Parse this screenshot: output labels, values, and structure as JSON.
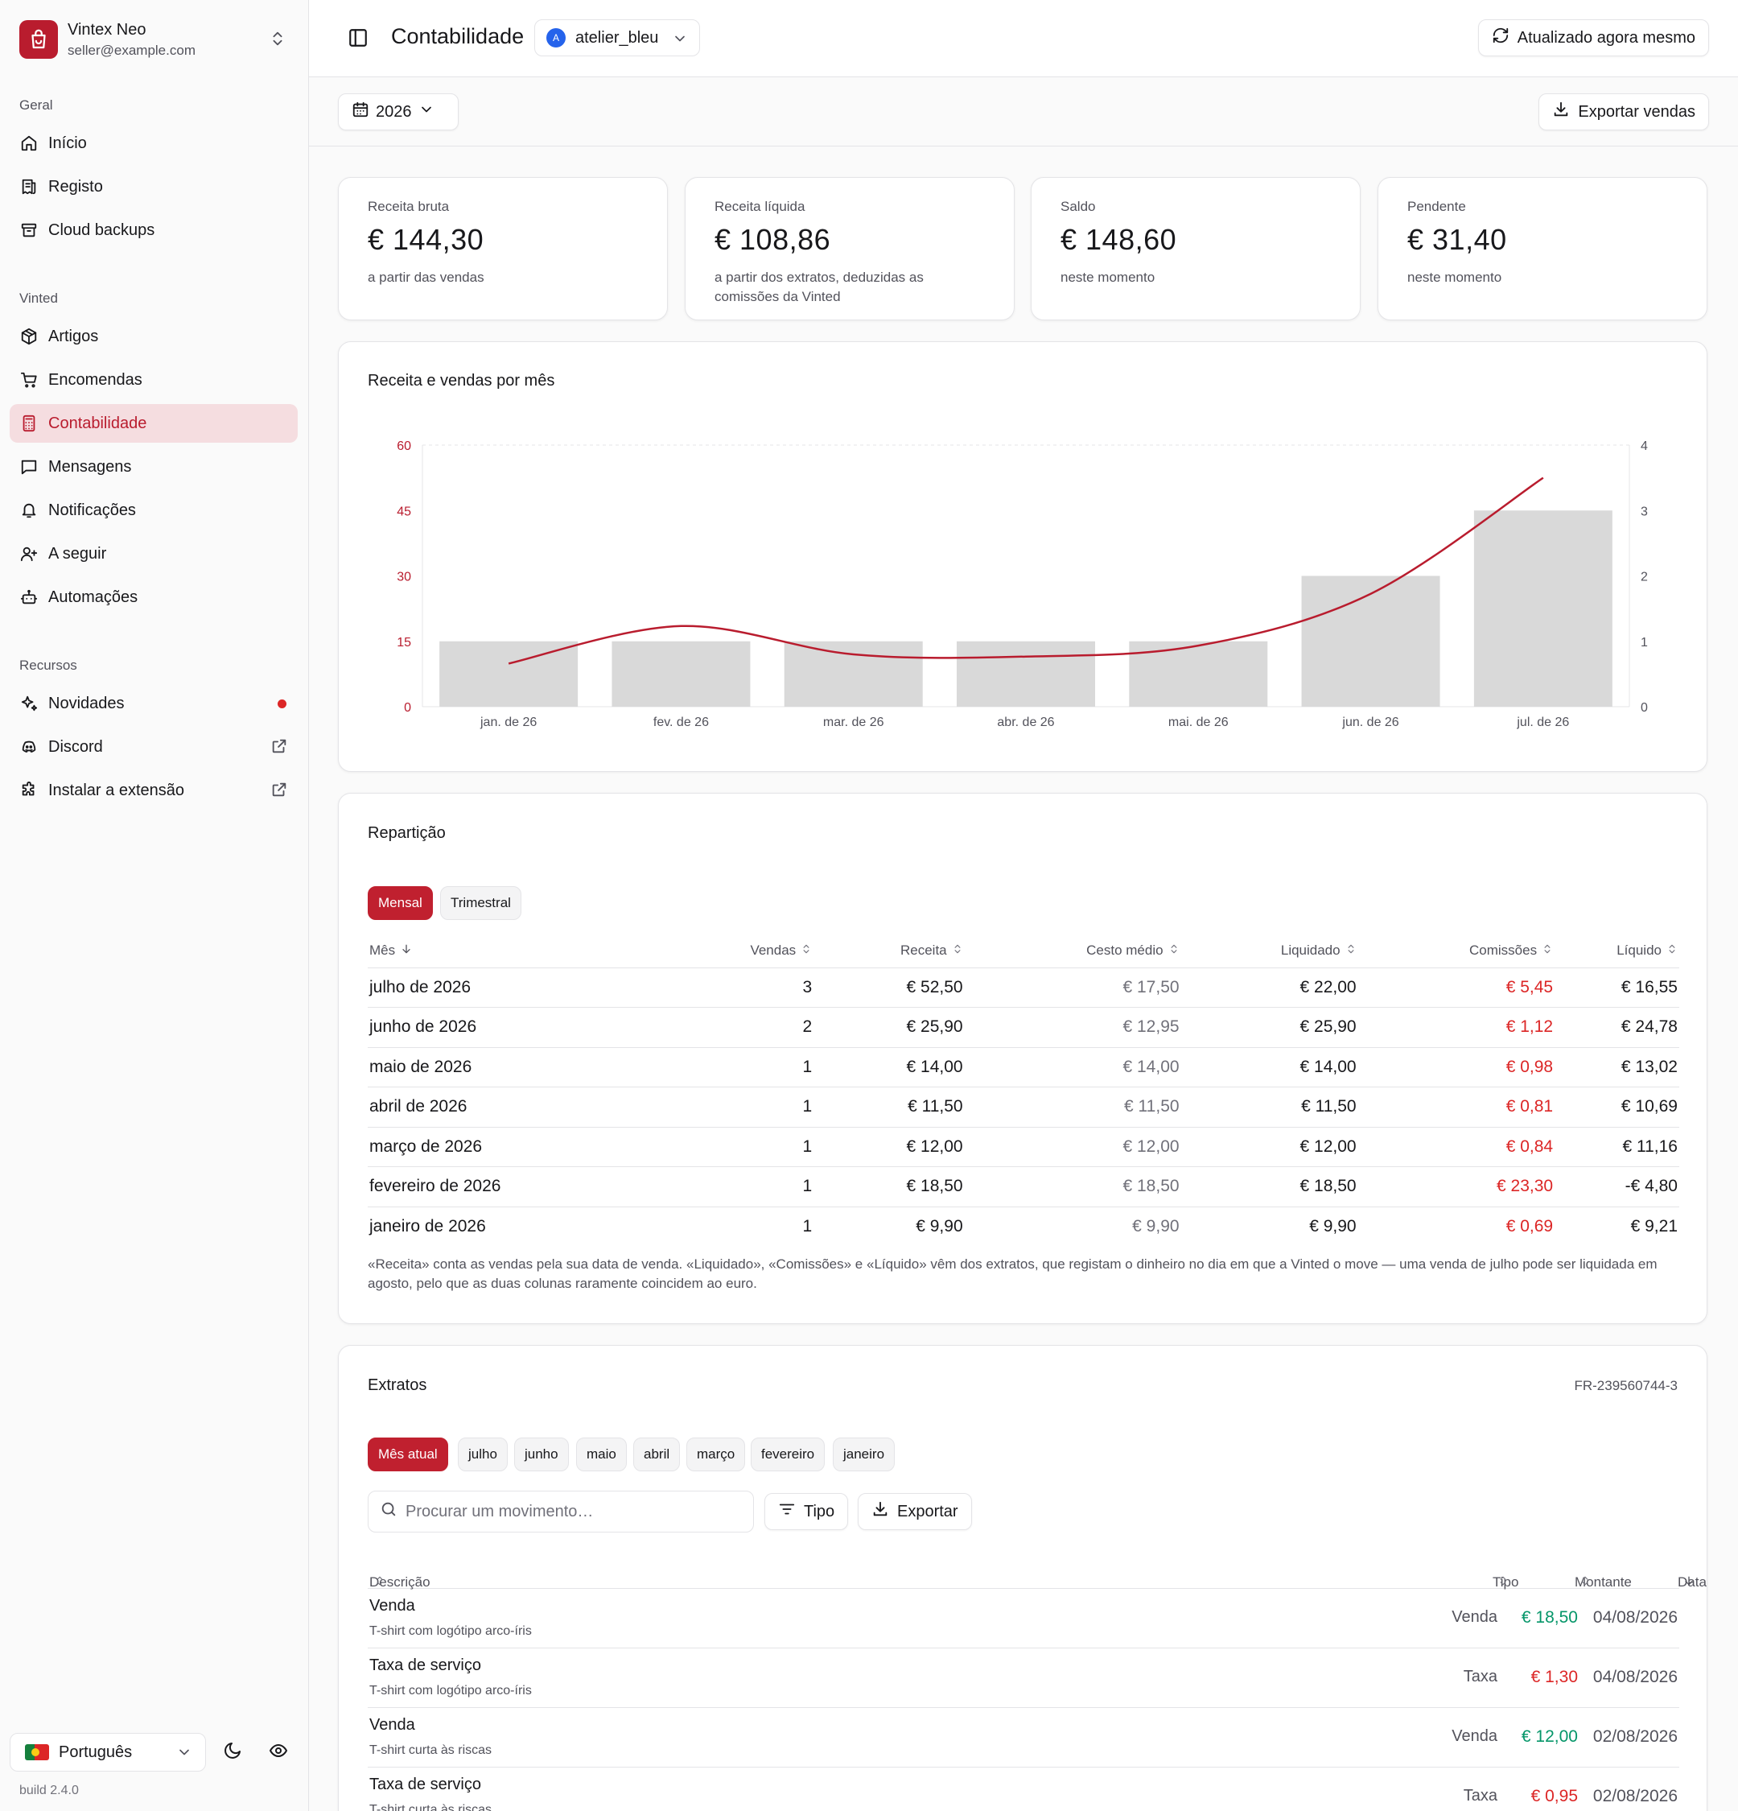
{
  "sidebar": {
    "brand_name": "Vintex Neo",
    "brand_email": "seller@example.com",
    "groups": {
      "general": "Geral",
      "vinted": "Vinted",
      "resources": "Recursos"
    },
    "items": [
      {
        "label": "Início",
        "icon": "home-icon"
      },
      {
        "label": "Registo",
        "icon": "receipt-icon"
      },
      {
        "label": "Cloud backups",
        "icon": "archive-icon"
      },
      {
        "label": "Artigos",
        "icon": "package-icon"
      },
      {
        "label": "Encomendas",
        "icon": "cart-icon"
      },
      {
        "label": "Contabilidade",
        "icon": "calculator-icon",
        "active": true
      },
      {
        "label": "Mensagens",
        "icon": "message-icon"
      },
      {
        "label": "Notificações",
        "icon": "bell-icon"
      },
      {
        "label": "A seguir",
        "icon": "user-plus-icon"
      },
      {
        "label": "Automações",
        "icon": "bot-icon"
      },
      {
        "label": "Novidades",
        "icon": "sparkles-icon",
        "badge": "red-dot"
      },
      {
        "label": "Discord",
        "icon": "discord-icon",
        "external": true
      },
      {
        "label": "Instalar a extensão",
        "icon": "puzzle-icon",
        "external": true
      }
    ],
    "language": "Português",
    "build": "build 2.4.0"
  },
  "header": {
    "title": "Contabilidade",
    "account": "atelier_bleu",
    "account_initial": "A",
    "refresh": "Atualizado agora mesmo"
  },
  "toolbar": {
    "year": "2026",
    "export_sales": "Exportar vendas"
  },
  "kpis": [
    {
      "label": "Receita bruta",
      "value": "€ 144,30",
      "sub": "a partir das vendas"
    },
    {
      "label": "Receita líquida",
      "value": "€ 108,86",
      "sub": "a partir dos extratos, deduzidas as comissões da Vinted"
    },
    {
      "label": "Saldo",
      "value": "€ 148,60",
      "sub": "neste momento"
    },
    {
      "label": "Pendente",
      "value": "€ 31,40",
      "sub": "neste momento"
    }
  ],
  "chart_data": {
    "type": "bar",
    "title": "Receita e vendas por mês",
    "categories": [
      "jan. de 26",
      "fev. de 26",
      "mar. de 26",
      "abr. de 26",
      "mai. de 26",
      "jun. de 26",
      "jul. de 26"
    ],
    "y_left": {
      "ticks": [
        "0",
        "15",
        "30",
        "45",
        "60"
      ],
      "ylim": [
        0,
        60
      ]
    },
    "y_right": {
      "ticks": [
        "0",
        "1",
        "2",
        "3",
        "4"
      ],
      "ylim": [
        0,
        4
      ]
    },
    "series": [
      {
        "type": "bar",
        "axis": "right",
        "values": [
          1,
          1,
          1,
          1,
          1,
          2,
          3
        ],
        "color": "#d9d9d9"
      },
      {
        "type": "line",
        "axis": "left",
        "values": [
          9.9,
          18.5,
          12.0,
          11.5,
          14.0,
          25.9,
          52.5
        ],
        "color": "#b91c2e"
      }
    ],
    "grid": false
  },
  "breakdown": {
    "title": "Repartição",
    "tabs": [
      "Mensal",
      "Trimestral"
    ],
    "columns": [
      "Mês",
      "Vendas",
      "Receita",
      "Cesto médio",
      "Liquidado",
      "Comissões",
      "Líquido"
    ],
    "rows": [
      [
        "julho de 2026",
        "3",
        "€ 52,50",
        "€ 17,50",
        "€ 22,00",
        "€ 5,45",
        "€ 16,55"
      ],
      [
        "junho de 2026",
        "2",
        "€ 25,90",
        "€ 12,95",
        "€ 25,90",
        "€ 1,12",
        "€ 24,78"
      ],
      [
        "maio de 2026",
        "1",
        "€ 14,00",
        "€ 14,00",
        "€ 14,00",
        "€ 0,98",
        "€ 13,02"
      ],
      [
        "abril de 2026",
        "1",
        "€ 11,50",
        "€ 11,50",
        "€ 11,50",
        "€ 0,81",
        "€ 10,69"
      ],
      [
        "março de 2026",
        "1",
        "€ 12,00",
        "€ 12,00",
        "€ 12,00",
        "€ 0,84",
        "€ 11,16"
      ],
      [
        "fevereiro de 2026",
        "1",
        "€ 18,50",
        "€ 18,50",
        "€ 18,50",
        "€ 23,30",
        "-€ 4,80"
      ],
      [
        "janeiro de 2026",
        "1",
        "€ 9,90",
        "€ 9,90",
        "€ 9,90",
        "€ 0,69",
        "€ 9,21"
      ]
    ],
    "note": "«Receita» conta as vendas pela sua data de venda. «Liquidado», «Comissões» e «Líquido» vêm dos extratos, que registam o dinheiro no dia em que a Vinted o move — uma venda de julho pode ser liquidada em agosto, pelo que as duas colunas raramente coincidem ao euro."
  },
  "extracts": {
    "title": "Extratos",
    "id": "FR-239560744-3",
    "tabs": [
      "Mês atual",
      "julho",
      "junho",
      "maio",
      "abril",
      "março",
      "fevereiro",
      "janeiro"
    ],
    "search_placeholder": "Procurar um movimento…",
    "type_button": "Tipo",
    "export_button": "Exportar",
    "columns": [
      "Descrição",
      "Tipo",
      "Montante",
      "Data"
    ],
    "rows": [
      {
        "title": "Venda",
        "subtitle": "T-shirt com logótipo arco-íris",
        "type": "Venda",
        "amount": "€ 18,50",
        "date": "04/08/2026",
        "sign": "pos"
      },
      {
        "title": "Taxa de serviço",
        "subtitle": "T-shirt com logótipo arco-íris",
        "type": "Taxa",
        "amount": "€ 1,30",
        "date": "04/08/2026",
        "sign": "neg"
      },
      {
        "title": "Venda",
        "subtitle": "T-shirt curta às riscas",
        "type": "Venda",
        "amount": "€ 12,00",
        "date": "02/08/2026",
        "sign": "pos"
      },
      {
        "title": "Taxa de serviço",
        "subtitle": "T-shirt curta às riscas",
        "type": "Taxa",
        "amount": "€ 0,95",
        "date": "02/08/2026",
        "sign": "neg"
      }
    ]
  },
  "colors": {
    "accent": "#b91c2e",
    "negative": "#dc2626",
    "positive": "#059669"
  }
}
